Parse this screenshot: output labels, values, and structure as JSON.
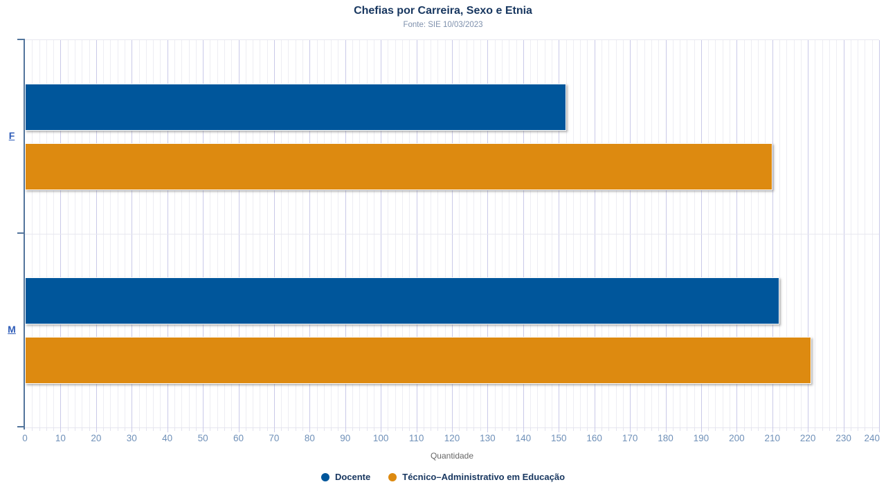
{
  "chart_data": {
    "type": "bar",
    "orientation": "horizontal",
    "title": "Chefias por Carreira, Sexo e Etnia",
    "subtitle": "Fonte: SIE 10/03/2023",
    "xlabel": "Quantidade",
    "categories": [
      "F",
      "M"
    ],
    "series": [
      {
        "name": "Docente",
        "color": "#00569B",
        "values": [
          152,
          212
        ]
      },
      {
        "name": "Técnico–Administrativo em Educação",
        "color": "#DD8A10",
        "values": [
          210,
          221
        ]
      }
    ],
    "xlim": [
      0,
      240
    ],
    "xticks": [
      0,
      10,
      20,
      30,
      40,
      50,
      60,
      70,
      80,
      90,
      100,
      110,
      120,
      130,
      140,
      150,
      160,
      170,
      180,
      190,
      200,
      210,
      220,
      230,
      240
    ],
    "minor_tick_step": 2,
    "grid": true,
    "legend_position": "bottom"
  },
  "colors": {
    "grid_minor": "#ededf3",
    "grid_major": "#c9c9e8",
    "axis_line": "#52749B",
    "tick_label": "#6f90b8",
    "category_label": "#2e5cb8",
    "title": "#17365F",
    "subtitle": "#7E90AC",
    "xlabel": "#666666"
  }
}
